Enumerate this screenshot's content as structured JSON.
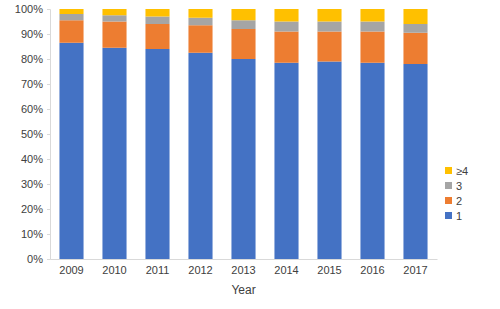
{
  "chart_data": {
    "type": "bar",
    "stacked": true,
    "legend": "right",
    "grid": false,
    "x_label": "Year",
    "categories": [
      "2009",
      "2010",
      "2011",
      "2012",
      "2013",
      "2014",
      "2015",
      "2016",
      "2017"
    ],
    "series": [
      {
        "name": "1",
        "color": "#4472c4",
        "values": [
          86.5,
          84.5,
          84,
          82.5,
          80,
          78.5,
          79,
          78.5,
          78
        ]
      },
      {
        "name": "2",
        "color": "#ed7d31",
        "values": [
          9,
          10.5,
          10,
          11,
          12,
          12.5,
          12,
          12.5,
          12.5
        ]
      },
      {
        "name": "3",
        "color": "#a5a5a5",
        "values": [
          2.5,
          2.5,
          3,
          3,
          3.5,
          4,
          4,
          4,
          3.5
        ]
      },
      {
        "name": "≥4",
        "color": "#ffc000",
        "values": [
          2,
          2.5,
          3,
          3.5,
          4.5,
          5,
          5,
          5,
          6
        ]
      }
    ],
    "ylim": [
      0,
      100
    ],
    "yticks": [
      {
        "value": 0,
        "label": "0%"
      },
      {
        "value": 10,
        "label": "10%"
      },
      {
        "value": 20,
        "label": "20%"
      },
      {
        "value": 30,
        "label": "30%"
      },
      {
        "value": 40,
        "label": "40%"
      },
      {
        "value": 50,
        "label": "50%"
      },
      {
        "value": 60,
        "label": "60%"
      },
      {
        "value": 70,
        "label": "70%"
      },
      {
        "value": 80,
        "label": "80%"
      },
      {
        "value": 90,
        "label": "90%"
      },
      {
        "value": 100,
        "label": "100%"
      }
    ]
  }
}
